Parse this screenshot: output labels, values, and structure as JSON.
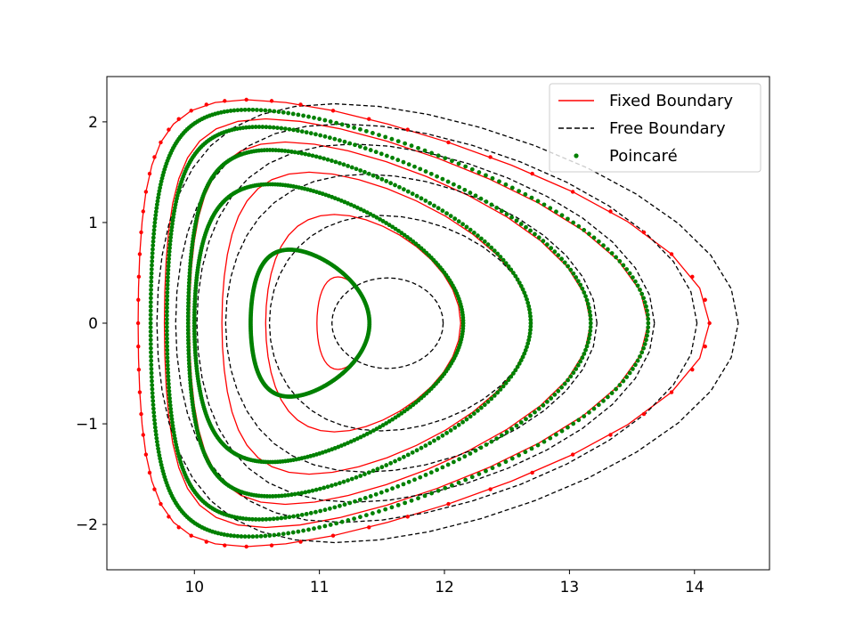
{
  "chart_data": {
    "type": "line",
    "title": "",
    "xlabel": "",
    "ylabel": "",
    "xlim": [
      9.3,
      14.6
    ],
    "ylim": [
      -2.45,
      2.45
    ],
    "x_ticks": [
      10,
      11,
      12,
      13,
      14
    ],
    "y_ticks": [
      -2,
      -1,
      0,
      1,
      2
    ],
    "y_tick_labels": [
      "−2",
      "−1",
      "0",
      "1",
      "2"
    ],
    "grid": false,
    "legend_position": "top-right",
    "legend": [
      {
        "label": "Fixed Boundary",
        "style": "line",
        "color": "#ff0000"
      },
      {
        "label": "Free Boundary",
        "style": "dashed",
        "color": "#000000"
      },
      {
        "label": "Poincaré",
        "style": "marker",
        "color": "#008000"
      }
    ],
    "series": [
      {
        "name": "Fixed Boundary",
        "color": "#ff0000",
        "style": "solid",
        "surfaces": [
          {
            "left": 10.98,
            "right": 11.4,
            "half_height": 0.46,
            "triangularity": 0.2
          },
          {
            "left": 10.57,
            "right": 12.13,
            "half_height": 1.08,
            "triangularity": 0.3
          },
          {
            "left": 10.22,
            "right": 12.69,
            "half_height": 1.5,
            "triangularity": 0.45
          },
          {
            "left": 9.96,
            "right": 13.17,
            "half_height": 1.8,
            "triangularity": 0.55
          },
          {
            "left": 9.76,
            "right": 13.63,
            "half_height": 2.03,
            "triangularity": 0.62
          },
          {
            "left": 9.55,
            "right": 14.12,
            "half_height": 2.22,
            "triangularity": 0.67
          }
        ]
      },
      {
        "name": "Free Boundary",
        "color": "#000000",
        "style": "dashed",
        "surfaces": [
          {
            "left": 11.1,
            "right": 11.99,
            "half_height": 0.45,
            "triangularity": 0.0
          },
          {
            "left": 10.6,
            "right": 12.7,
            "half_height": 1.07,
            "triangularity": 0.15
          },
          {
            "left": 10.25,
            "right": 13.22,
            "half_height": 1.48,
            "triangularity": 0.25
          },
          {
            "left": 10.02,
            "right": 13.68,
            "half_height": 1.78,
            "triangularity": 0.32
          },
          {
            "left": 9.85,
            "right": 14.02,
            "half_height": 1.98,
            "triangularity": 0.37
          },
          {
            "left": 9.7,
            "right": 14.35,
            "half_height": 2.18,
            "triangularity": 0.4
          }
        ]
      },
      {
        "name": "Poincaré",
        "color": "#008000",
        "style": "marker",
        "surfaces": [
          {
            "left": 10.45,
            "right": 11.4,
            "half_height": 0.73,
            "triangularity": 0.35
          },
          {
            "left": 10.0,
            "right": 12.15,
            "half_height": 1.38,
            "triangularity": 0.45
          },
          {
            "left": 9.95,
            "right": 12.69,
            "half_height": 1.72,
            "triangularity": 0.55
          },
          {
            "left": 9.78,
            "right": 13.17,
            "half_height": 1.95,
            "triangularity": 0.6
          },
          {
            "left": 9.65,
            "right": 13.63,
            "half_height": 2.12,
            "triangularity": 0.65
          }
        ]
      }
    ]
  }
}
